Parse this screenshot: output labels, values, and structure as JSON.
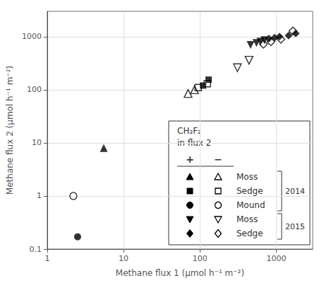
{
  "chart_data": {
    "type": "scatter",
    "xlabel": "Methane flux 1 (μmol h⁻¹ m⁻²)",
    "ylabel": "Methane flux 2 (μmol h⁻¹ m⁻²)",
    "log": true,
    "xlim": [
      1,
      3000
    ],
    "ylim": [
      0.1,
      3000
    ],
    "xticks": [
      1,
      10,
      100,
      1000
    ],
    "yticks": [
      0.1,
      1,
      10,
      100,
      1000
    ],
    "grid": true,
    "legend": "lower right",
    "color": "#000000",
    "annotations": [
      "CH₂F₂",
      "in flux 2"
    ],
    "series": [
      {
        "name": "Moss",
        "year": "2014",
        "sign": "+",
        "marker": "triangle-up-filled",
        "x": [
          5.5
        ],
        "values": [
          8.0
        ]
      },
      {
        "name": "Moss",
        "year": "2014",
        "sign": "−",
        "marker": "triangle-up-open",
        "x": [
          70,
          85
        ],
        "values": [
          85,
          100
        ]
      },
      {
        "name": "Sedge",
        "year": "2014",
        "sign": "+",
        "marker": "square-filled",
        "x": [
          110,
          130
        ],
        "values": [
          120,
          155
        ]
      },
      {
        "name": "Sedge",
        "year": "2014",
        "sign": "−",
        "marker": "square-open",
        "x": [
          95,
          125
        ],
        "values": [
          110,
          130
        ]
      },
      {
        "name": "Mound",
        "year": "2014",
        "sign": "+",
        "marker": "circle-filled",
        "x": [
          2.5
        ],
        "values": [
          0.17
        ]
      },
      {
        "name": "Mound",
        "year": "2014",
        "sign": "−",
        "marker": "circle-open",
        "x": [
          2.2
        ],
        "values": [
          1.0
        ]
      },
      {
        "name": "Moss",
        "year": "2015",
        "sign": "+",
        "marker": "triangle-down-filled",
        "x": [
          460,
          550,
          620,
          700
        ],
        "values": [
          700,
          760,
          810,
          860
        ]
      },
      {
        "name": "Moss",
        "year": "2015",
        "sign": "−",
        "marker": "triangle-down-open",
        "x": [
          310,
          440
        ],
        "values": [
          260,
          360
        ]
      },
      {
        "name": "Sedge",
        "year": "2015",
        "sign": "+",
        "marker": "diamond-filled",
        "x": [
          800,
          950,
          1100,
          1450,
          1800
        ],
        "values": [
          920,
          960,
          1000,
          1050,
          1150
        ]
      },
      {
        "name": "Sedge",
        "year": "2015",
        "sign": "−",
        "marker": "diamond-open",
        "x": [
          680,
          850,
          1150,
          1650
        ],
        "values": [
          720,
          800,
          890,
          1280
        ]
      }
    ]
  }
}
